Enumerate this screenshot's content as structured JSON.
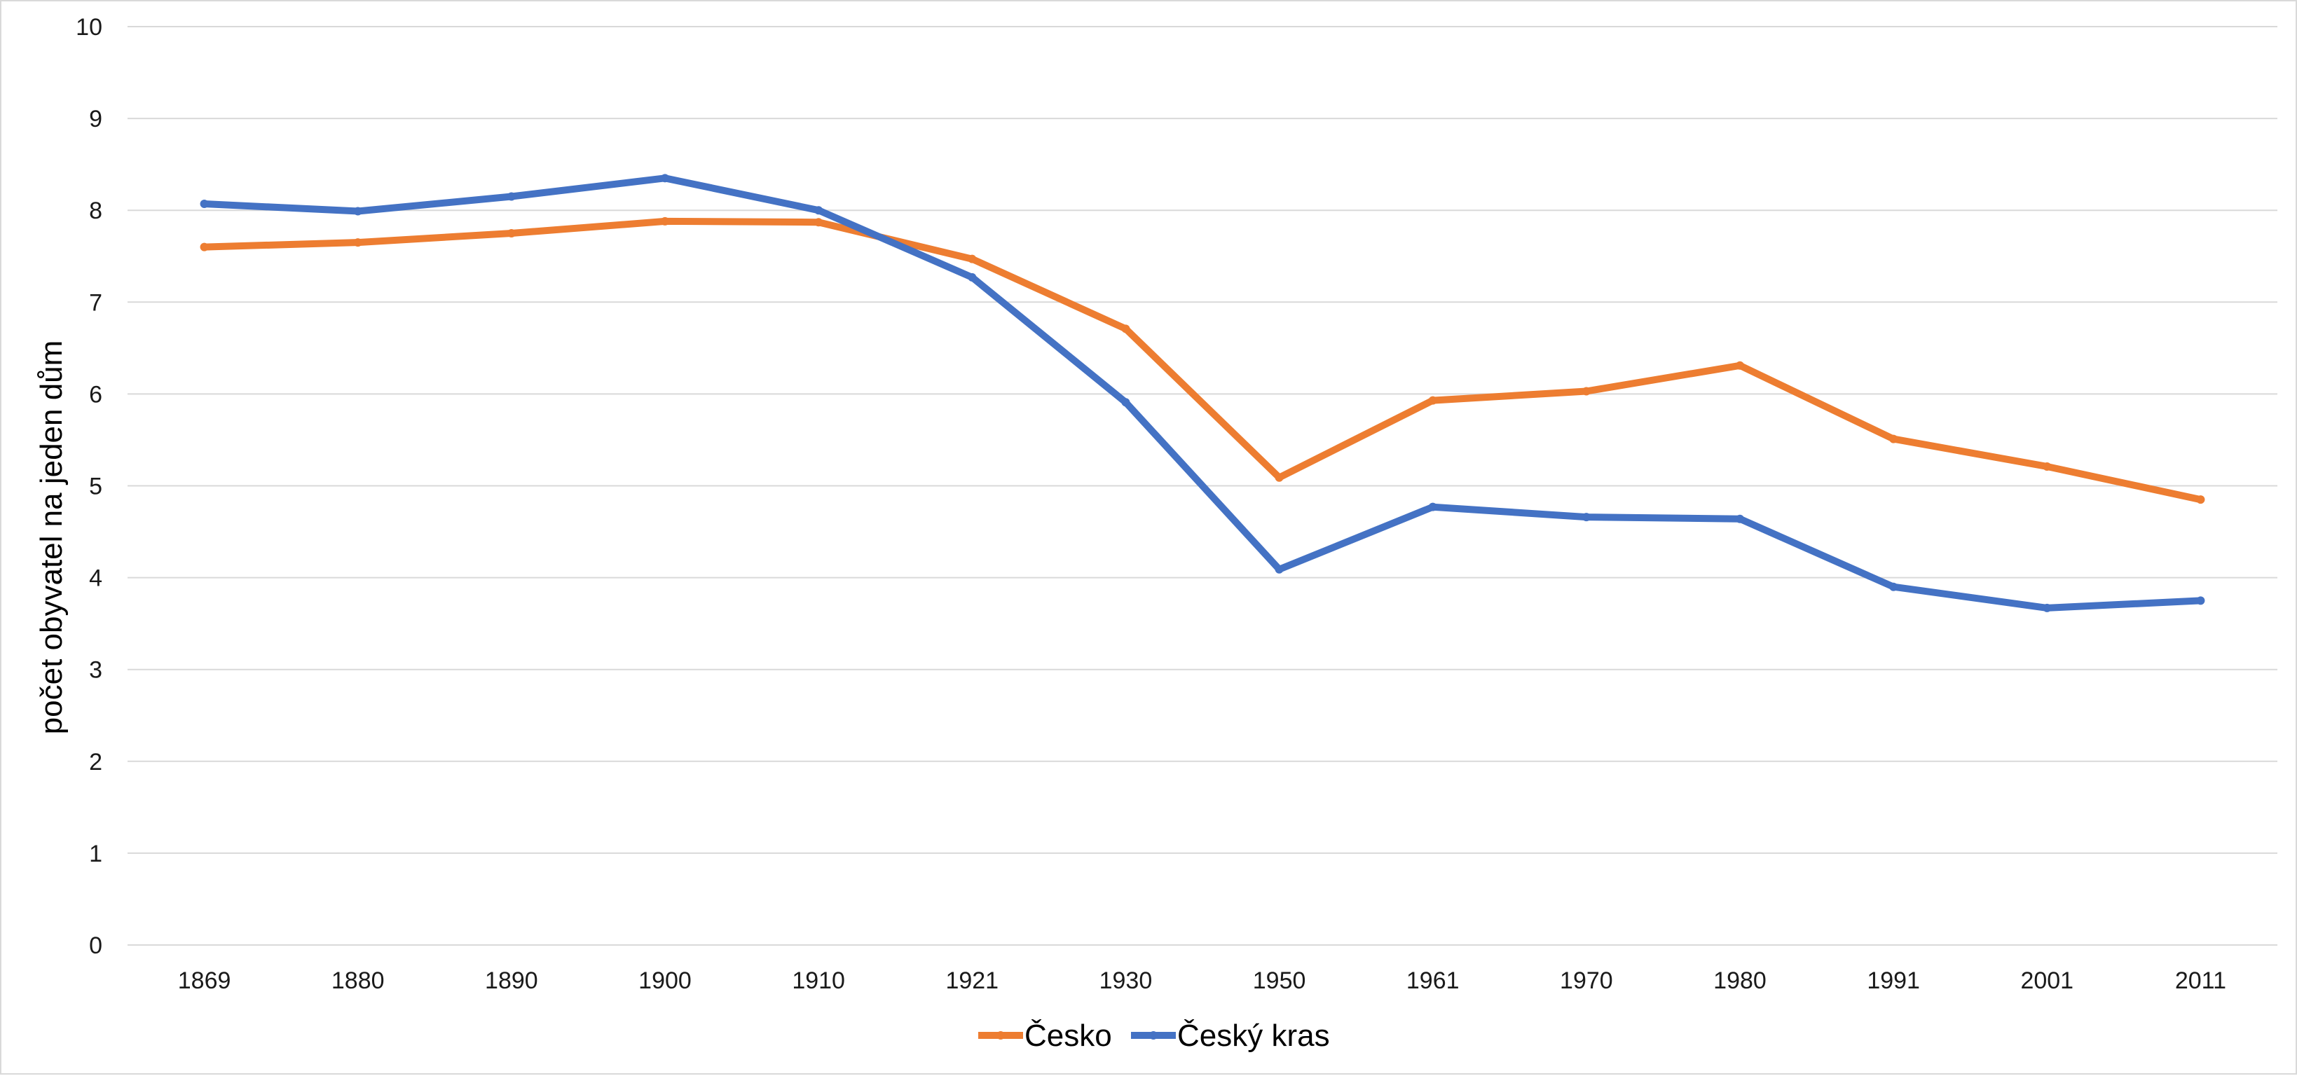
{
  "chart_data": {
    "type": "line",
    "title": "",
    "xlabel": "",
    "ylabel": "počet obyvatel na jeden dům",
    "ylim": [
      0,
      10
    ],
    "yticks": [
      0,
      1,
      2,
      3,
      4,
      5,
      6,
      7,
      8,
      9,
      10
    ],
    "grid": true,
    "legend_position": "bottom",
    "categories": [
      "1869",
      "1880",
      "1890",
      "1900",
      "1910",
      "1921",
      "1930",
      "1950",
      "1961",
      "1970",
      "1980",
      "1991",
      "2001",
      "2011"
    ],
    "series": [
      {
        "name": "Česko",
        "color": "#ed7d31",
        "values": [
          7.6,
          7.65,
          7.75,
          7.88,
          7.87,
          7.47,
          6.71,
          5.09,
          5.93,
          6.03,
          6.31,
          5.51,
          5.21,
          4.85
        ]
      },
      {
        "name": "Český kras",
        "color": "#4472c4",
        "values": [
          8.07,
          7.99,
          8.15,
          8.35,
          8.0,
          7.27,
          5.91,
          4.09,
          4.77,
          4.66,
          4.64,
          3.9,
          3.67,
          3.75
        ]
      }
    ]
  }
}
